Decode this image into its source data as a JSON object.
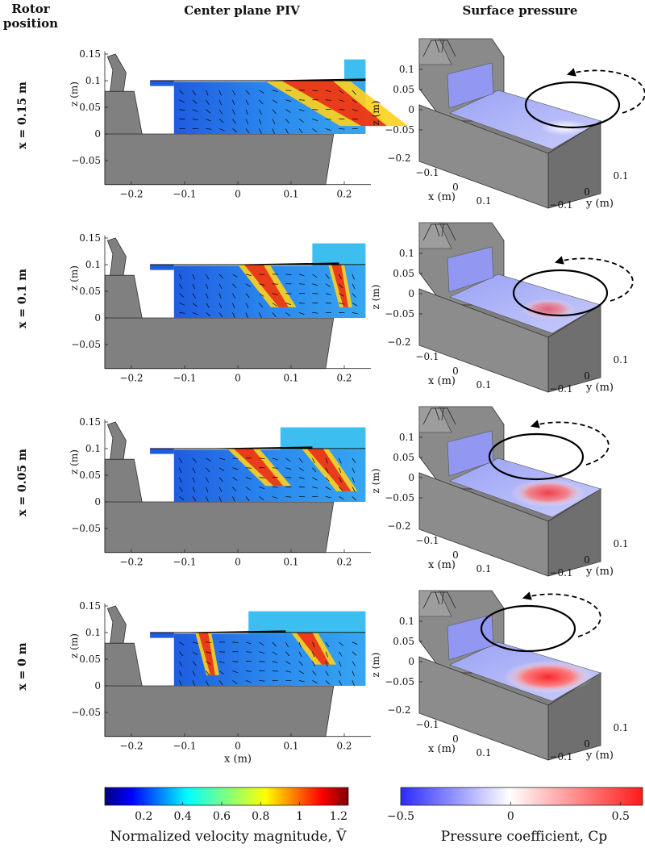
{
  "headers": {
    "rotor_line1": "Rotor",
    "rotor_line2": "position",
    "piv": "Center plane PIV",
    "pressure": "Surface pressure"
  },
  "row_labels": [
    "x = 0.15 m",
    "x = 0.1 m",
    "x = 0.05 m",
    "x = 0 m"
  ],
  "chart_data": [
    {
      "type": "heatmap",
      "panel": "Center plane PIV",
      "xlabel": "x (m)",
      "ylabel": "z (m)",
      "xlim": [
        -0.25,
        0.25
      ],
      "ylim": [
        -0.1,
        0.16
      ],
      "xticks": [
        -0.2,
        -0.1,
        0,
        0.1,
        0.2
      ],
      "yticks": [
        0.15,
        0.1,
        0.05,
        0,
        -0.05
      ],
      "rotor_positions_m": [
        0.15,
        0.1,
        0.05,
        0
      ],
      "colorbar": {
        "label": "Normalized velocity magnitude, Ṽ",
        "range": [
          0,
          1.25
        ],
        "ticks": [
          0.2,
          0.4,
          0.6,
          0.8,
          1,
          1.2
        ],
        "colormap": "jet"
      }
    },
    {
      "type": "heatmap",
      "panel": "Surface pressure",
      "xlabel": "x (m)",
      "ylabel": "y (m)",
      "zlabel": "z (m)",
      "xticks": [
        -0.1,
        0,
        0.1
      ],
      "yticks": [
        -0.1,
        0,
        0.1
      ],
      "zticks": [
        0.1,
        0.05,
        0,
        -0.05
      ],
      "xticks_row1": [
        -0.2,
        -0.1,
        0,
        0.1
      ],
      "rotor_positions_m": [
        0.15,
        0.1,
        0.05,
        0
      ],
      "peak_cp_estimate": [
        0.0,
        0.15,
        0.35,
        0.5
      ],
      "colorbar": {
        "label": "Pressure coefficient, Cp",
        "range": [
          -0.5,
          0.6
        ],
        "ticks": [
          -0.5,
          0,
          0.5
        ],
        "colormap": "blue-white-red"
      }
    }
  ]
}
